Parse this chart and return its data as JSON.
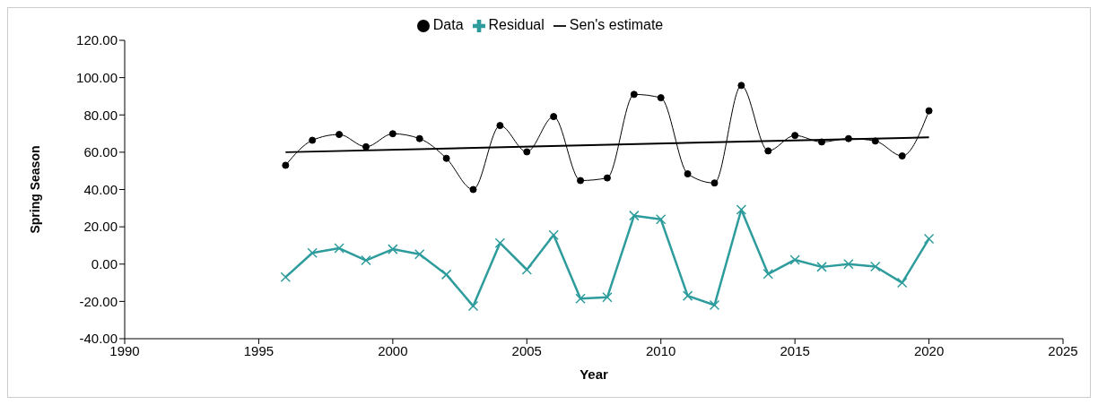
{
  "chart_data": {
    "type": "line",
    "xlabel": "Year",
    "ylabel": "Spring Season",
    "xlim": [
      1990,
      2025
    ],
    "xticks": [
      1990,
      1995,
      2000,
      2005,
      2010,
      2015,
      2020,
      2025
    ],
    "ylim": [
      -40,
      120
    ],
    "yticks": [
      {
        "value": -40,
        "label": "-40.00"
      },
      {
        "value": -20,
        "label": "-20.00"
      },
      {
        "value": 0,
        "label": "0.00"
      },
      {
        "value": 20,
        "label": "20.00"
      },
      {
        "value": 40,
        "label": "40.00"
      },
      {
        "value": 60,
        "label": "60.00"
      },
      {
        "value": 80,
        "label": "80.00"
      },
      {
        "value": 100,
        "label": "100.00"
      },
      {
        "value": 120,
        "label": "120.00"
      }
    ],
    "grid": false,
    "legend": "top",
    "x": [
      1996,
      1997,
      1998,
      1999,
      2000,
      2001,
      2002,
      2003,
      2004,
      2005,
      2006,
      2007,
      2008,
      2009,
      2010,
      2011,
      2012,
      2013,
      2014,
      2015,
      2016,
      2017,
      2018,
      2019,
      2020
    ],
    "series": [
      {
        "name": "Data",
        "color": "#000000",
        "marker": "circle",
        "values": [
          53,
          66.4,
          69.5,
          62.9,
          69.9,
          67.3,
          56.7,
          40,
          74.3,
          60.2,
          79.1,
          44.8,
          46.2,
          91,
          89.2,
          48.4,
          43.5,
          95.8,
          60.7,
          69,
          65.5,
          67.3,
          66,
          58,
          82.2
        ]
      },
      {
        "name": "Sen's estimate",
        "color": "#000000",
        "marker": "none",
        "x": [
          1996,
          2020
        ],
        "values": [
          60,
          68
        ]
      },
      {
        "name": "Residual",
        "color": "#2e9c9c",
        "marker": "cross",
        "values": [
          -7,
          6,
          8.5,
          2,
          8,
          5.3,
          -5.6,
          -22.5,
          11.3,
          -3,
          15.6,
          -18.5,
          -17.8,
          26,
          24,
          -17,
          -22,
          29.2,
          -5.3,
          2.3,
          -1.5,
          0,
          -1.3,
          -10,
          13.6
        ]
      }
    ]
  }
}
